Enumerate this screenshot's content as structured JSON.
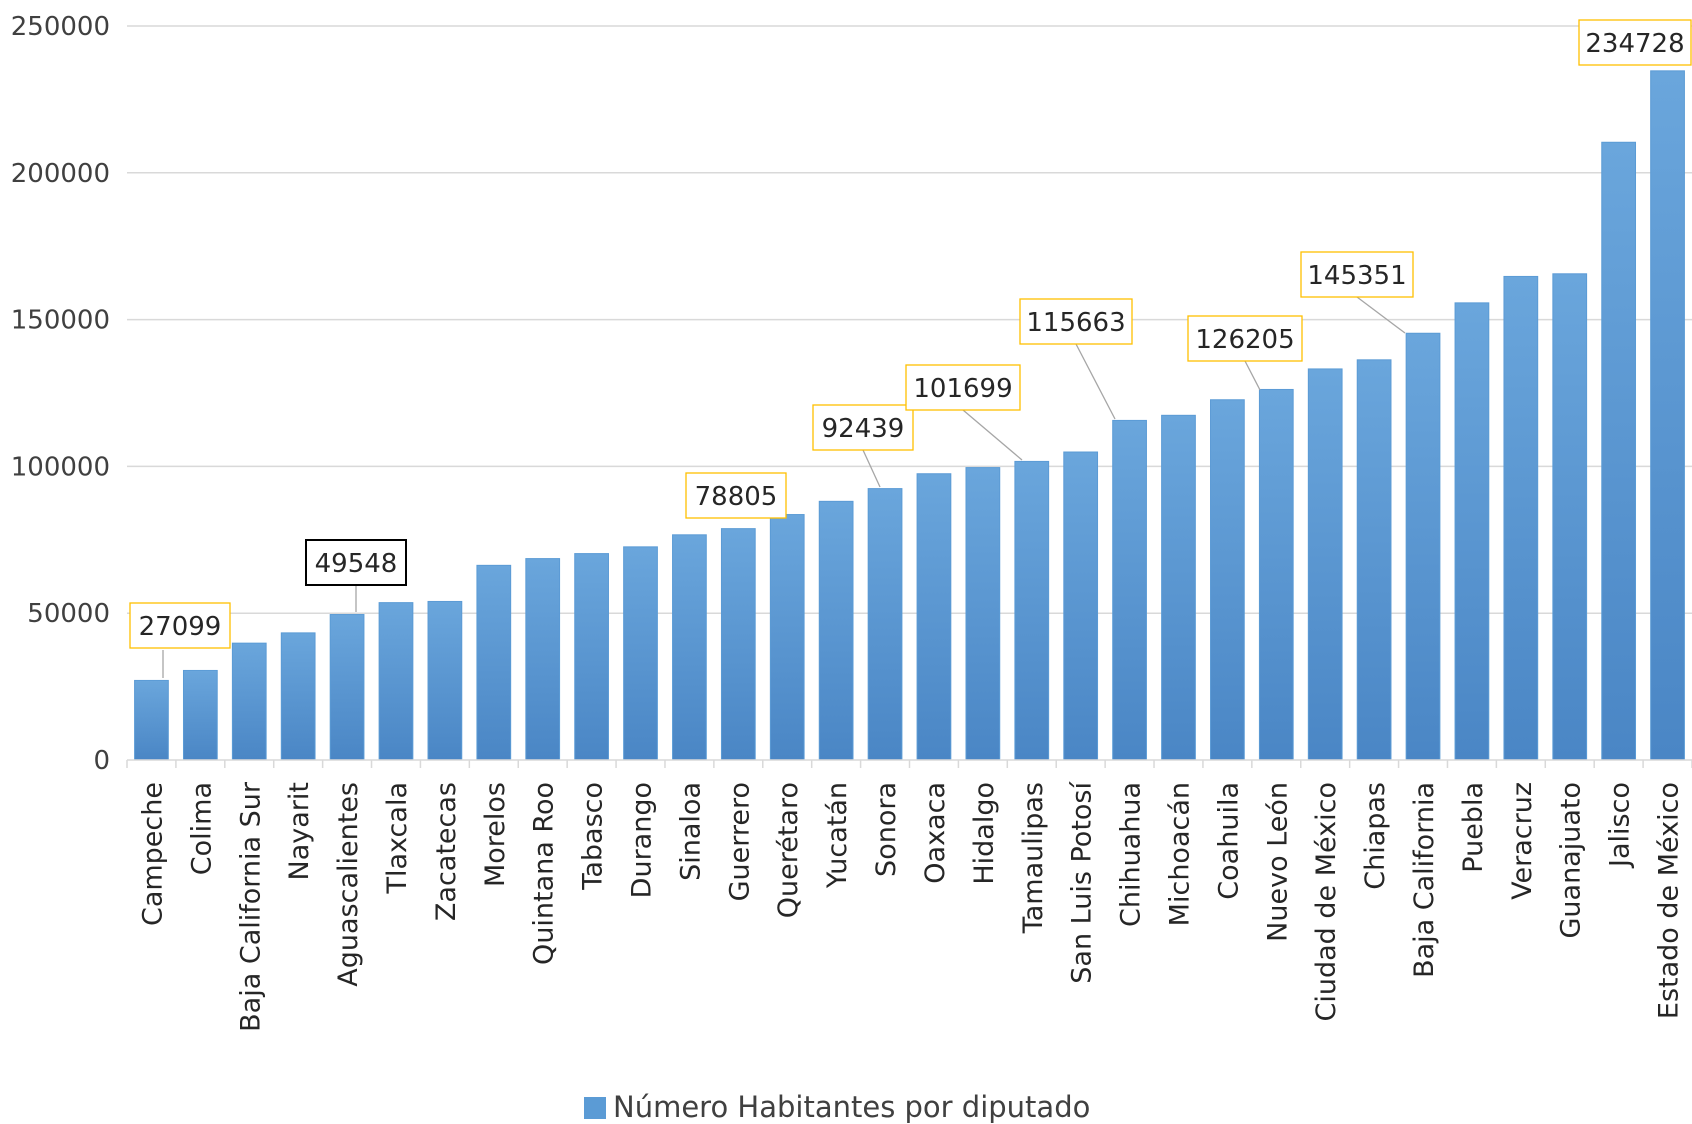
{
  "chart_data": {
    "type": "bar",
    "title": "",
    "xlabel": "",
    "ylabel": "",
    "ylim": [
      0,
      250000
    ],
    "yticks": [
      0,
      50000,
      100000,
      150000,
      200000,
      250000
    ],
    "ytick_labels": [
      "0",
      "50000",
      "100000",
      "150000",
      "200000",
      "250000"
    ],
    "grid": true,
    "legend_position": "bottom",
    "bar_color": "#5b9bd5",
    "bar_color_dark": "#4a86c5",
    "label_border_color": "#ffc000",
    "highlight_border_color": "#000000",
    "categories": [
      "Campeche",
      "Colima",
      "Baja California Sur",
      "Nayarit",
      "Aguascalientes",
      "Tlaxcala",
      "Zacatecas",
      "Morelos",
      "Quintana Roo",
      "Tabasco",
      "Durango",
      "Sinaloa",
      "Guerrero",
      "Querétaro",
      "Yucatán",
      "Sonora",
      "Oaxaca",
      "Hidalgo",
      "Tamaulipas",
      "San Luis Potosí",
      "Chihuahua",
      "Michoacán",
      "Coahuila",
      "Nuevo León",
      "Ciudad de México",
      "Chiapas",
      "Baja California",
      "Puebla",
      "Veracruz",
      "Guanajuato",
      "Jalisco",
      "Estado de México"
    ],
    "series": [
      {
        "name": "Número Habitantes por diputado",
        "values": [
          27099,
          30500,
          39800,
          43300,
          49548,
          53600,
          54000,
          66300,
          68600,
          70300,
          72600,
          76700,
          78805,
          83600,
          88100,
          92439,
          97500,
          99600,
          101699,
          104900,
          115663,
          117400,
          122700,
          126205,
          133200,
          136300,
          145351,
          155700,
          164700,
          165600,
          210400,
          234728
        ]
      }
    ],
    "data_labels": [
      {
        "category": "Campeche",
        "text": "27099",
        "highlight": false
      },
      {
        "category": "Aguascalientes",
        "text": "49548",
        "highlight": true
      },
      {
        "category": "Guerrero",
        "text": "78805",
        "highlight": false
      },
      {
        "category": "Sonora",
        "text": "92439",
        "highlight": false
      },
      {
        "category": "Tamaulipas",
        "text": "101699",
        "highlight": false
      },
      {
        "category": "Chihuahua",
        "text": "115663",
        "highlight": false
      },
      {
        "category": "Nuevo León",
        "text": "126205",
        "highlight": false
      },
      {
        "category": "Baja California",
        "text": "145351",
        "highlight": false
      },
      {
        "category": "Estado de México",
        "text": "234728",
        "highlight": false
      }
    ]
  }
}
